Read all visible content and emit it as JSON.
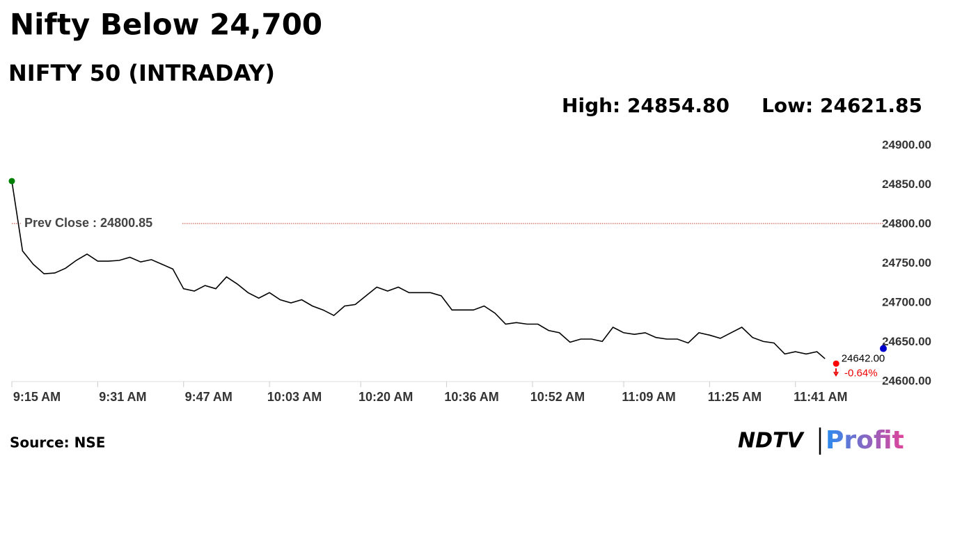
{
  "chart_data": {
    "type": "line",
    "title": "Nifty Below 24,700",
    "subtitle": "NIFTY 50 (INTRADAY)",
    "high_label": "High: 24854.80",
    "low_label": "Low: 24621.85",
    "source": "Source: NSE",
    "logo": [
      "NDTV",
      "Profit"
    ],
    "prev_close": 24800.85,
    "prev_close_label": "Prev Close : 24800.85",
    "current": 24642,
    "current_label": "24642.00",
    "change_label": "-0.64%",
    "xlim": [
      555,
      717.5
    ],
    "xticks": [
      {
        "value": 555,
        "label": "9:15 AM"
      },
      {
        "value": 571,
        "label": "9:31 AM"
      },
      {
        "value": 587,
        "label": "9:47 AM"
      },
      {
        "value": 603,
        "label": "10:03 AM"
      },
      {
        "value": 620,
        "label": "10:20 AM"
      },
      {
        "value": 636,
        "label": "10:36 AM"
      },
      {
        "value": 652,
        "label": "10:52 AM"
      },
      {
        "value": 669,
        "label": "11:09 AM"
      },
      {
        "value": 685,
        "label": "11:25 AM"
      },
      {
        "value": 701,
        "label": "11:41 AM"
      }
    ],
    "ylim": [
      24600,
      24900
    ],
    "yticks": [
      {
        "value": 24600,
        "label": "24600.00"
      },
      {
        "value": 24650,
        "label": "24650.00"
      },
      {
        "value": 24700,
        "label": "24700.00"
      },
      {
        "value": 24750,
        "label": "24750.00"
      },
      {
        "value": 24800,
        "label": "24800.00"
      },
      {
        "value": 24850,
        "label": "24850.00"
      },
      {
        "value": 24900,
        "label": "24900.00"
      }
    ],
    "grid": false,
    "color": "#000000",
    "x": [
      555,
      557,
      559,
      561,
      563,
      565,
      567,
      569,
      571,
      573,
      575,
      577,
      579,
      581,
      583,
      585,
      587,
      589,
      591,
      593,
      595,
      597,
      599,
      601,
      603,
      605,
      607,
      609,
      611,
      613,
      615,
      617,
      619,
      621,
      623,
      625,
      627,
      629,
      631,
      633,
      635,
      637,
      639,
      641,
      643,
      645,
      647,
      649,
      651,
      653,
      655,
      657,
      659,
      661,
      663,
      665,
      667,
      669,
      671,
      673,
      675,
      677,
      679,
      681,
      683,
      685,
      687,
      689,
      691,
      693,
      695,
      697,
      699,
      701,
      703,
      705,
      706.5
    ],
    "values": [
      24854.8,
      24766,
      24749,
      24737,
      24738,
      24744,
      24754,
      24762,
      24753,
      24753,
      24754,
      24758,
      24752,
      24755,
      24749,
      24743,
      24718,
      24715,
      24722,
      24718,
      24733,
      24724,
      24713,
      24706,
      24713,
      24704,
      24700,
      24704,
      24696,
      24691,
      24684,
      24696,
      24698,
      24709,
      24720,
      24715,
      24720,
      24713,
      24713,
      24713,
      24709,
      24691,
      24691,
      24691,
      24696,
      24687,
      24673,
      24675,
      24673,
      24673,
      24665,
      24662,
      24650,
      24654,
      24654,
      24651,
      24669,
      24662,
      24660,
      24662,
      24656,
      24654,
      24654,
      24649,
      24662,
      24659,
      24655,
      24662,
      24669,
      24656,
      24651,
      24649,
      24635,
      24638,
      24635,
      24638,
      24629
    ]
  }
}
